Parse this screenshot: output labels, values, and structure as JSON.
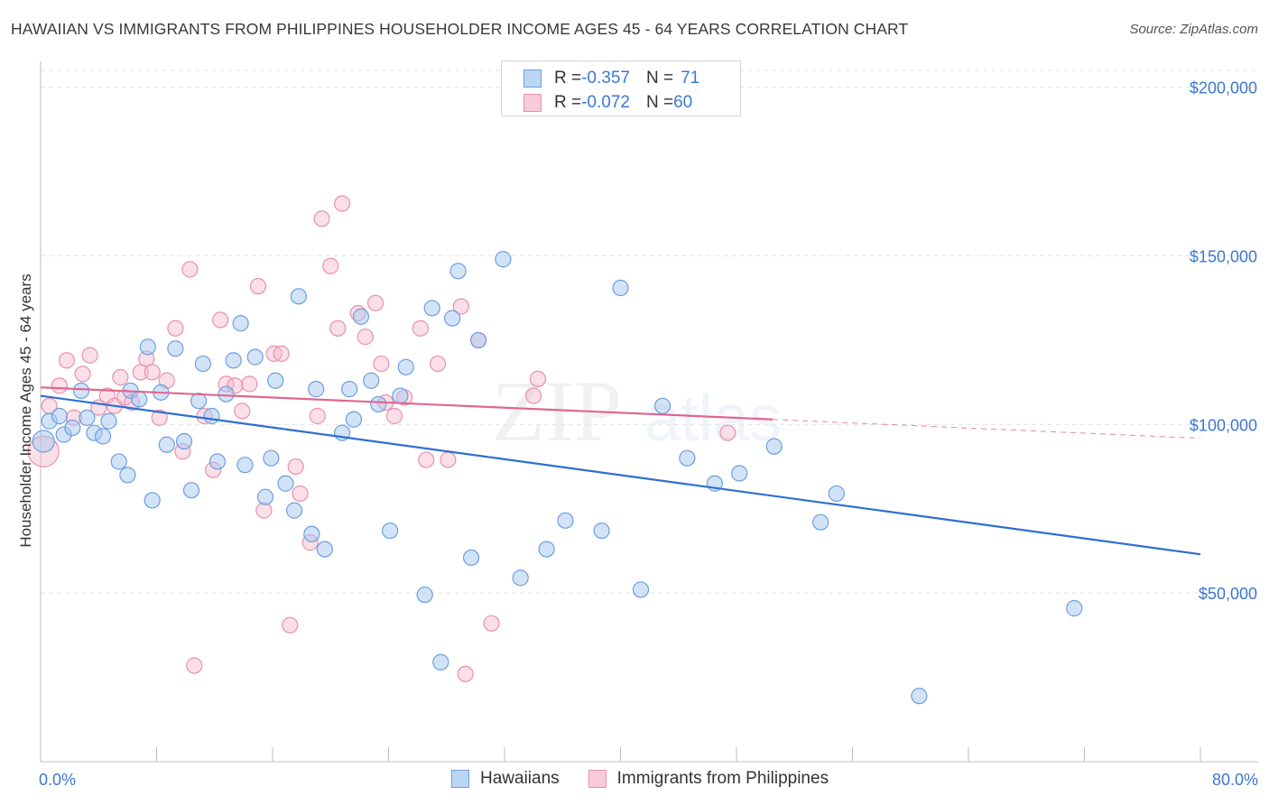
{
  "header": {
    "title": "HAWAIIAN VS IMMIGRANTS FROM PHILIPPINES HOUSEHOLDER INCOME AGES 45 - 64 YEARS CORRELATION CHART",
    "source": "Source: ZipAtlas.com"
  },
  "watermark": {
    "zip": "ZIP",
    "atlas": "atlas"
  },
  "legend": {
    "rows": [
      {
        "r_label": "R = ",
        "r_value": "-0.357",
        "n_label": "N = ",
        "n_value": "71"
      },
      {
        "r_label": "R = ",
        "r_value": "-0.072",
        "n_label": "N = ",
        "n_value": "60"
      }
    ]
  },
  "bottom_legend": {
    "series1": "Hawaiians",
    "series2": "Immigrants from Philippines"
  },
  "colors": {
    "blue_fill": "#a8c8f0",
    "blue_stroke": "#6a9fe0",
    "blue_line": "#2d6fd0",
    "pink_fill": "#f5b8cc",
    "pink_stroke": "#e890ae",
    "pink_line": "#e06690",
    "axis_text": "#3b78d0",
    "grid": "#e2e2e2"
  },
  "chart_data": {
    "type": "scatter",
    "title": "HAWAIIAN VS IMMIGRANTS FROM PHILIPPINES HOUSEHOLDER INCOME AGES 45 - 64 YEARS CORRELATION CHART",
    "xlabel": "",
    "ylabel": "Householder Income Ages 45 - 64 years",
    "xlim": [
      0,
      80
    ],
    "ylim": [
      0,
      205000
    ],
    "x_tick_labels": [
      "0.0%",
      "80.0%"
    ],
    "y_ticks": [
      50000,
      100000,
      150000,
      200000
    ],
    "y_tick_labels": [
      "$50,000",
      "$100,000",
      "$150,000",
      "$200,000"
    ],
    "grid": true,
    "legend_position": "top-center",
    "series": [
      {
        "name": "Hawaiians",
        "r": -0.357,
        "n": 71,
        "trend": {
          "x": [
            0,
            80
          ],
          "y": [
            108500,
            61500
          ]
        },
        "points": [
          [
            0.2,
            95000
          ],
          [
            0.6,
            101000
          ],
          [
            1.3,
            102500
          ],
          [
            1.6,
            97000
          ],
          [
            2.2,
            99000
          ],
          [
            2.8,
            110000
          ],
          [
            3.2,
            102000
          ],
          [
            3.7,
            97500
          ],
          [
            4.3,
            96500
          ],
          [
            4.7,
            101000
          ],
          [
            5.4,
            89000
          ],
          [
            6.0,
            85000
          ],
          [
            6.2,
            110000
          ],
          [
            6.8,
            107500
          ],
          [
            7.4,
            123000
          ],
          [
            7.7,
            77500
          ],
          [
            8.3,
            109500
          ],
          [
            8.7,
            94000
          ],
          [
            9.3,
            122500
          ],
          [
            9.9,
            95000
          ],
          [
            10.4,
            80500
          ],
          [
            10.9,
            107000
          ],
          [
            11.2,
            118000
          ],
          [
            11.8,
            102500
          ],
          [
            12.2,
            89000
          ],
          [
            12.8,
            109000
          ],
          [
            13.3,
            119000
          ],
          [
            13.8,
            130000
          ],
          [
            14.1,
            88000
          ],
          [
            14.8,
            120000
          ],
          [
            15.5,
            78500
          ],
          [
            15.9,
            90000
          ],
          [
            16.2,
            113000
          ],
          [
            16.9,
            82500
          ],
          [
            17.5,
            74500
          ],
          [
            17.8,
            138000
          ],
          [
            18.7,
            67500
          ],
          [
            19.0,
            110500
          ],
          [
            19.6,
            63000
          ],
          [
            20.8,
            97500
          ],
          [
            21.3,
            110500
          ],
          [
            21.6,
            101500
          ],
          [
            22.1,
            132000
          ],
          [
            22.8,
            113000
          ],
          [
            23.3,
            106000
          ],
          [
            24.1,
            68500
          ],
          [
            24.8,
            108500
          ],
          [
            25.2,
            117000
          ],
          [
            26.5,
            49500
          ],
          [
            27.0,
            134500
          ],
          [
            28.4,
            131500
          ],
          [
            28.8,
            145500
          ],
          [
            29.7,
            60500
          ],
          [
            30.2,
            125000
          ],
          [
            31.9,
            149000
          ],
          [
            33.1,
            54500
          ],
          [
            34.9,
            63000
          ],
          [
            36.2,
            71500
          ],
          [
            38.7,
            68500
          ],
          [
            40.0,
            140500
          ],
          [
            41.4,
            51000
          ],
          [
            42.9,
            105500
          ],
          [
            44.6,
            90000
          ],
          [
            46.5,
            82500
          ],
          [
            48.2,
            85500
          ],
          [
            50.6,
            93500
          ],
          [
            53.8,
            71000
          ],
          [
            54.9,
            79500
          ],
          [
            60.6,
            19500
          ],
          [
            71.3,
            45500
          ],
          [
            27.6,
            29500
          ]
        ]
      },
      {
        "name": "Immigrants from Philippines",
        "r": -0.072,
        "n": 60,
        "trend": {
          "x": [
            0,
            50.5
          ],
          "y": [
            111000,
            101500
          ]
        },
        "trend_dashed": {
          "x": [
            50.5,
            80
          ],
          "y": [
            101500,
            95900
          ]
        },
        "points": [
          [
            0.2,
            92000
          ],
          [
            0.6,
            105500
          ],
          [
            1.3,
            111500
          ],
          [
            1.8,
            119000
          ],
          [
            2.3,
            102000
          ],
          [
            2.9,
            115000
          ],
          [
            3.4,
            120500
          ],
          [
            4.0,
            105000
          ],
          [
            4.6,
            108500
          ],
          [
            5.1,
            105500
          ],
          [
            5.5,
            114000
          ],
          [
            5.8,
            108000
          ],
          [
            6.3,
            106500
          ],
          [
            6.9,
            115500
          ],
          [
            7.3,
            119500
          ],
          [
            7.7,
            115500
          ],
          [
            8.2,
            102000
          ],
          [
            8.7,
            113000
          ],
          [
            9.3,
            128500
          ],
          [
            9.8,
            92000
          ],
          [
            10.3,
            146000
          ],
          [
            10.6,
            28500
          ],
          [
            11.3,
            102500
          ],
          [
            11.9,
            86500
          ],
          [
            12.4,
            131000
          ],
          [
            12.8,
            112000
          ],
          [
            13.4,
            111500
          ],
          [
            13.9,
            104000
          ],
          [
            14.4,
            112000
          ],
          [
            15.0,
            141000
          ],
          [
            15.4,
            74500
          ],
          [
            16.1,
            121000
          ],
          [
            16.6,
            121000
          ],
          [
            17.2,
            40500
          ],
          [
            17.6,
            87500
          ],
          [
            17.9,
            79500
          ],
          [
            18.6,
            65000
          ],
          [
            19.1,
            102500
          ],
          [
            19.4,
            161000
          ],
          [
            20.0,
            147000
          ],
          [
            20.5,
            128500
          ],
          [
            20.8,
            165500
          ],
          [
            21.9,
            133000
          ],
          [
            22.4,
            126000
          ],
          [
            23.1,
            136000
          ],
          [
            23.5,
            118000
          ],
          [
            23.8,
            106500
          ],
          [
            24.4,
            102500
          ],
          [
            25.1,
            108000
          ],
          [
            26.2,
            128500
          ],
          [
            26.6,
            89500
          ],
          [
            27.4,
            118000
          ],
          [
            28.1,
            89500
          ],
          [
            29.0,
            135000
          ],
          [
            29.3,
            26000
          ],
          [
            30.2,
            125000
          ],
          [
            31.1,
            41000
          ],
          [
            34.0,
            108500
          ],
          [
            34.3,
            113500
          ],
          [
            47.4,
            97500
          ]
        ]
      }
    ]
  },
  "axes": {
    "y_title": "Householder Income Ages 45 - 64 years",
    "x_left_label": "0.0%",
    "x_right_label": "80.0%"
  }
}
